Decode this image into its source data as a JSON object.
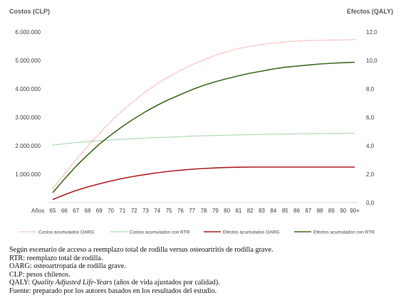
{
  "chart_data": {
    "type": "line",
    "left_axis_title": "Costos (CLP)",
    "right_axis_title": "Efectos (QALY)",
    "x_axis_label": "Años",
    "x": [
      "65",
      "66",
      "67",
      "68",
      "69",
      "70",
      "71",
      "72",
      "73",
      "74",
      "75",
      "76",
      "77",
      "78",
      "79",
      "80",
      "81",
      "82",
      "83",
      "84",
      "85",
      "86",
      "87",
      "88",
      "89",
      "90",
      "90+"
    ],
    "ylim_left": [
      0,
      6000000
    ],
    "yticks_left": [
      "6.000.000",
      "5.000.000",
      "4.000.000",
      "3.000.000",
      "2.000.000",
      "1.000.000"
    ],
    "ylim_right": [
      0,
      12
    ],
    "yticks_right": [
      "12,0",
      "10,0",
      "8,0",
      "6,0",
      "4,0",
      "2,0",
      "0,0"
    ],
    "grid": false,
    "legend_position": "bottom",
    "series": [
      {
        "name": "Costos acumulados OARG",
        "axis": "left",
        "color": "#e8706a",
        "style": "dotted",
        "values": [
          500000,
          1000000,
          1500000,
          1980000,
          2420000,
          2850000,
          3230000,
          3580000,
          3900000,
          4180000,
          4430000,
          4650000,
          4850000,
          5020000,
          5180000,
          5310000,
          5420000,
          5500000,
          5560000,
          5610000,
          5650000,
          5680000,
          5700000,
          5710000,
          5720000,
          5720000,
          5730000
        ]
      },
      {
        "name": "Costos acumulados con RTR",
        "axis": "left",
        "color": "#3f9f46",
        "style": "dotted",
        "values": [
          2020000,
          2070000,
          2110000,
          2150000,
          2180000,
          2200000,
          2230000,
          2250000,
          2270000,
          2290000,
          2300000,
          2320000,
          2340000,
          2350000,
          2360000,
          2370000,
          2380000,
          2390000,
          2400000,
          2410000,
          2410000,
          2420000,
          2420000,
          2430000,
          2430000,
          2430000,
          2440000
        ]
      },
      {
        "name": "Efectos acumulados OARG",
        "axis": "right",
        "color": "#b01f24",
        "style": "solid",
        "values": [
          0.22,
          0.55,
          0.85,
          1.1,
          1.32,
          1.52,
          1.7,
          1.85,
          1.98,
          2.1,
          2.2,
          2.28,
          2.35,
          2.4,
          2.44,
          2.47,
          2.49,
          2.5,
          2.5,
          2.5,
          2.5,
          2.5,
          2.5,
          2.5,
          2.5,
          2.5,
          2.5
        ]
      },
      {
        "name": "Efectos acumulados con RTR",
        "axis": "right",
        "color": "#3f6b1e",
        "style": "solid",
        "values": [
          0.7,
          1.65,
          2.55,
          3.35,
          4.1,
          4.75,
          5.35,
          5.9,
          6.4,
          6.85,
          7.25,
          7.6,
          7.95,
          8.25,
          8.5,
          8.72,
          8.92,
          9.1,
          9.25,
          9.4,
          9.52,
          9.6,
          9.68,
          9.75,
          9.8,
          9.84,
          9.87
        ]
      }
    ]
  },
  "notes": {
    "line1": "Según escenario de acceso a reemplazo total de rodilla versus osteoartritis de rodilla grave.",
    "line2": "RTR: reemplazo total de rodilla.",
    "line3": "OARG: osteoartropatía de rodilla grave.",
    "line4": "CLP: pesos chilenos.",
    "line5_prefix": "QALY: ",
    "line5_italic": "Quality Adjusted Life-Years",
    "line5_suffix": " (años de vida ajustados por calidad).",
    "line6": "Fuente: preparado por los autores basados en los resultados del estudio."
  }
}
